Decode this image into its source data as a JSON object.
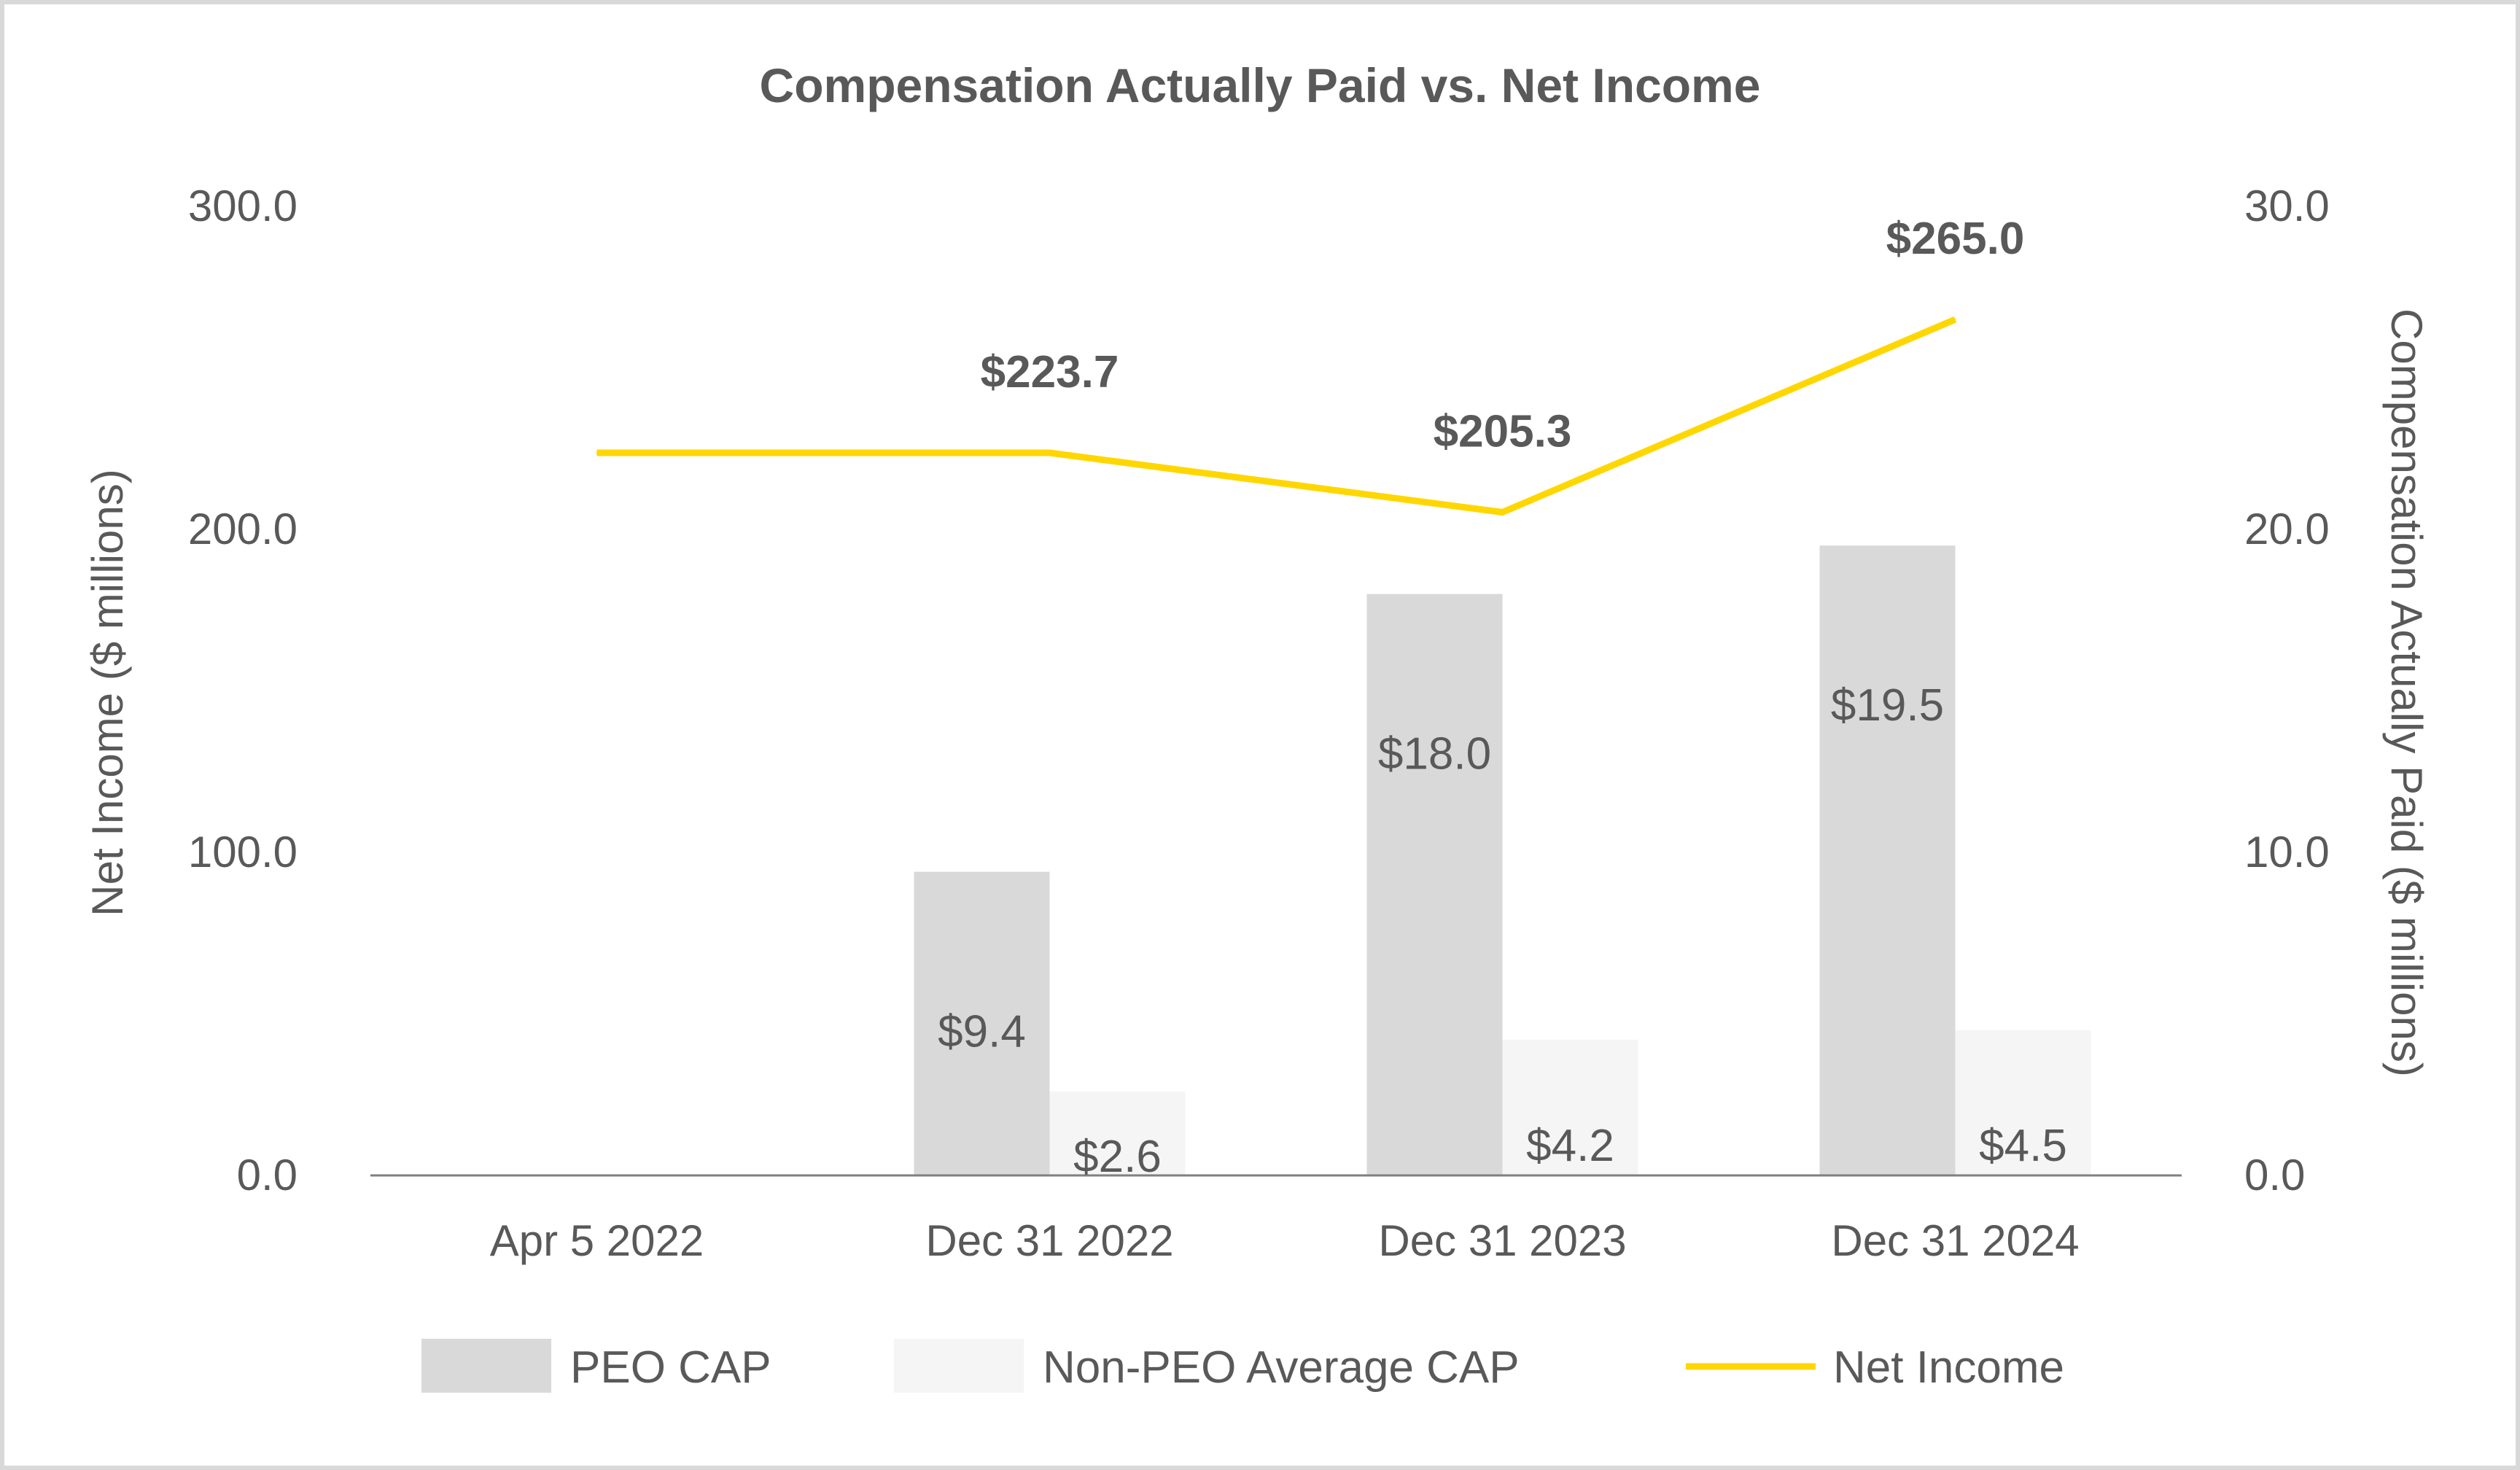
{
  "chart_data": {
    "type": "bar",
    "title": "Compensation Actually Paid vs. Net Income",
    "categories": [
      "Apr 5 2022",
      "Dec 31 2022",
      "Dec 31 2023",
      "Dec 31 2024"
    ],
    "ylabel_left": "Net Income ($ millions)",
    "ylabel_right": "Compensation Actually Paid ($ millions)",
    "ylim_left": [
      0,
      300
    ],
    "ylim_right": [
      0,
      30
    ],
    "left_ticks": [
      "0.0",
      "100.0",
      "200.0",
      "300.0"
    ],
    "right_ticks": [
      "0.0",
      "10.0",
      "20.0",
      "30.0"
    ],
    "series": [
      {
        "name": "PEO CAP",
        "type": "bar",
        "axis": "right",
        "color": "#d9d9d9",
        "values": [
          null,
          9.4,
          18.0,
          19.5
        ],
        "labels": [
          "",
          "$9.4",
          "$18.0",
          "$19.5"
        ]
      },
      {
        "name": "Non-PEO Average CAP",
        "type": "bar",
        "axis": "right",
        "color": "#f5f5f5",
        "values": [
          null,
          2.6,
          4.2,
          4.5
        ],
        "labels": [
          "",
          "$2.6",
          "$4.2",
          "$4.5"
        ]
      },
      {
        "name": "Net Income",
        "type": "line",
        "axis": "left",
        "color": "#ffd700",
        "values": [
          223.7,
          223.7,
          205.3,
          265.0
        ],
        "labels": [
          "",
          "$223.7",
          "$205.3",
          "$265.0"
        ]
      }
    ],
    "legend": {
      "position": "bottom",
      "entries": [
        "PEO CAP",
        "Non-PEO Average CAP",
        "Net Income"
      ]
    }
  }
}
